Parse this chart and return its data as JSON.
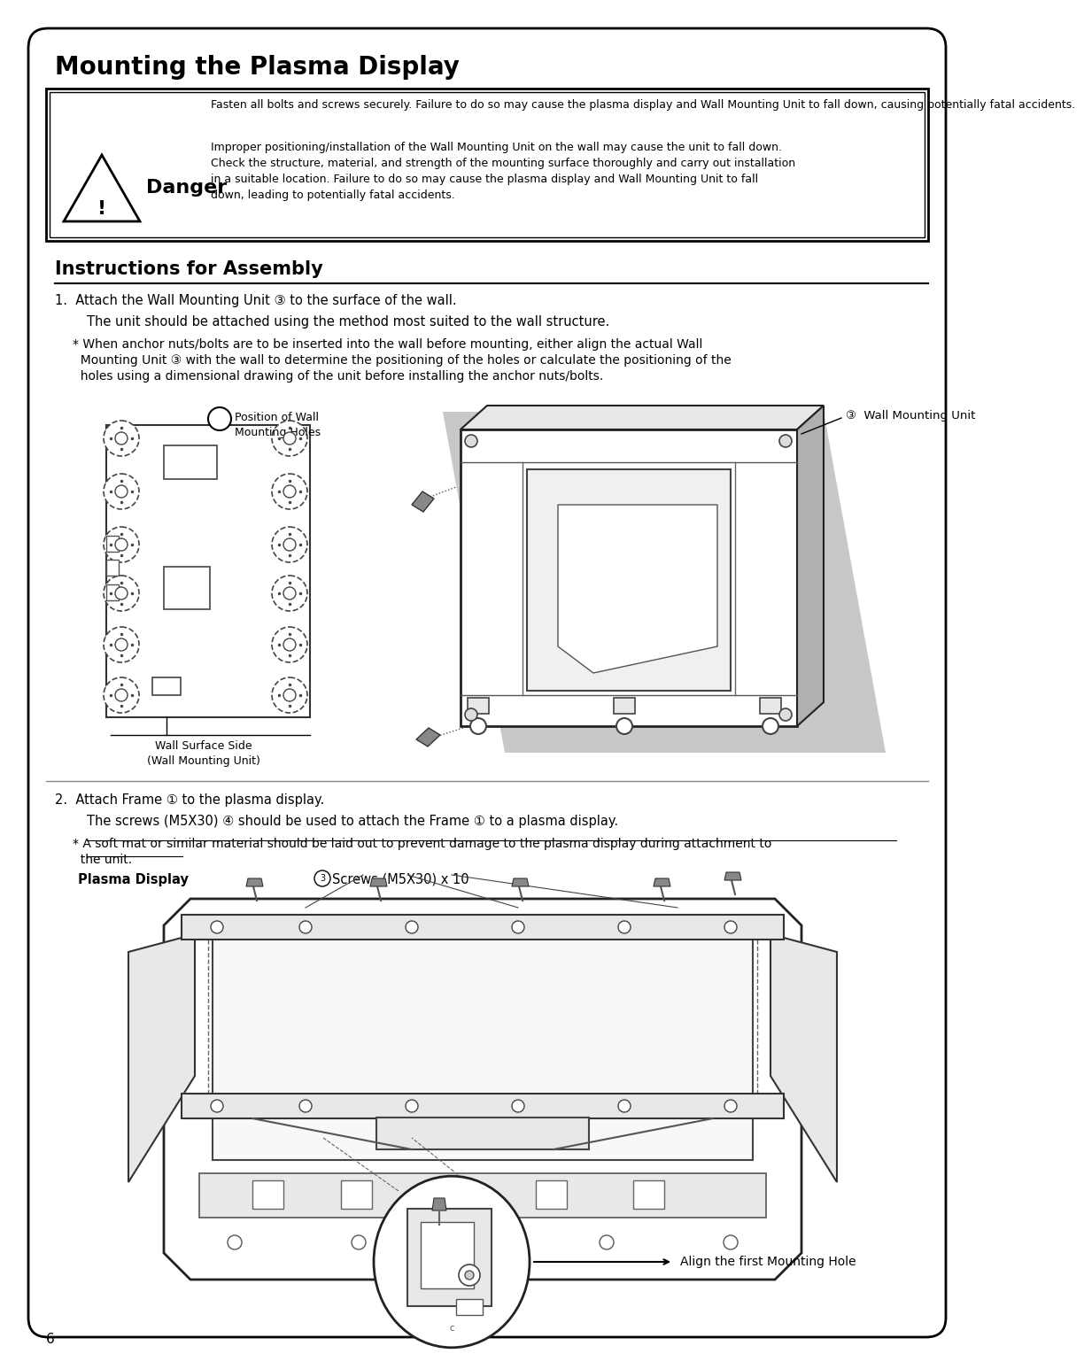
{
  "bg_color": "#ffffff",
  "page_number": "6",
  "title": "Mounting the Plasma Display",
  "danger_text1": "Fasten all bolts and screws securely. Failure to do so may cause the plasma display and Wall Mounting Unit to fall down, causing potentially fatal accidents.",
  "danger_text2_l1": "Improper positioning/installation of the Wall Mounting Unit on the wall may cause the unit to fall down.",
  "danger_text2_l2": "Check the structure, material, and strength of the mounting surface thoroughly and carry out installation",
  "danger_text2_l3": "in a suitable location. Failure to do so may cause the plasma display and Wall Mounting Unit to fall",
  "danger_text2_l4": "down, leading to potentially fatal accidents.",
  "danger_label": "Danger",
  "section_title": "Instructions for Assembly",
  "step1_line1": "1.  Attach the Wall Mounting Unit ③ to the surface of the wall.",
  "step1_line2": "The unit should be attached using the method most suited to the wall structure.",
  "step1_star1": "* When anchor nuts/bolts are to be inserted into the wall before mounting, either align the actual Wall",
  "step1_star2": "  Mounting Unit ③ with the wall to determine the positioning of the holes or calculate the positioning of the",
  "step1_star3": "  holes using a dimensional drawing of the unit before installing the anchor nuts/bolts.",
  "label_pos_wall": "Position of Wall\nMounting Holes",
  "label_wall_surface": "Wall Surface Side\n(Wall Mounting Unit)",
  "label_wall_unit": "③  Wall Mounting Unit",
  "step2_line1": "2.  Attach Frame ① to the plasma display.",
  "step2_line2": "The screws (M5X30) ④ should be used to attach the Frame ① to a plasma display.",
  "step2_star1": "* A soft mat or similar material should be laid out to prevent damage to the plasma display during attachment to",
  "step2_star2": "  the unit.",
  "label_plasma": "Plasma Display",
  "label_screws": "④Screws (M5X30) x 10",
  "label_align": "Align the first Mounting Hole",
  "gray_color": "#c8c8c8",
  "light_gray": "#e8e8e8",
  "mid_gray": "#b0b0b0"
}
